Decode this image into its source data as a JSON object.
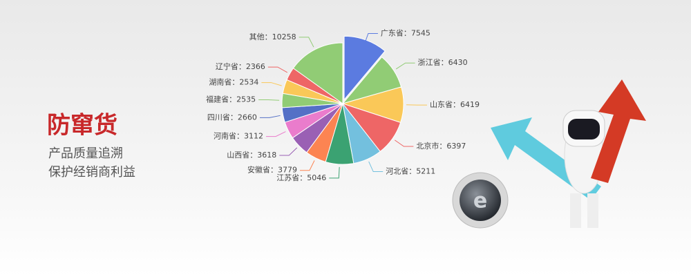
{
  "banner": {
    "title": "防窜货",
    "lines": [
      "产品质量追溯",
      "保护经销商利益"
    ]
  },
  "chart_data": {
    "type": "pie",
    "values": [
      7545,
      6430,
      6419,
      6397,
      5211,
      5046,
      3779,
      3618,
      3112,
      2660,
      2535,
      2534,
      2366,
      10258
    ],
    "value_labels": [
      "广东省：7545",
      "浙江省：6430",
      "山东省：6419",
      "北京市：6397",
      "河北省：5211",
      "江苏省：5046",
      "安徽省：3779",
      "山西省：3618",
      "河南省：3112",
      "四川省：2660",
      "福建省：2535",
      "湖南省：2534",
      "辽宁省：2366",
      "其他：10258"
    ],
    "colors": [
      "#5b7be0",
      "#91cc75",
      "#fac858",
      "#ee6666",
      "#73c0de",
      "#3ba272",
      "#fc8452",
      "#9a60b4",
      "#ea7ccc",
      "#5470c6",
      "#91cc75",
      "#fac858",
      "#ee6666",
      "#91cc75"
    ]
  }
}
